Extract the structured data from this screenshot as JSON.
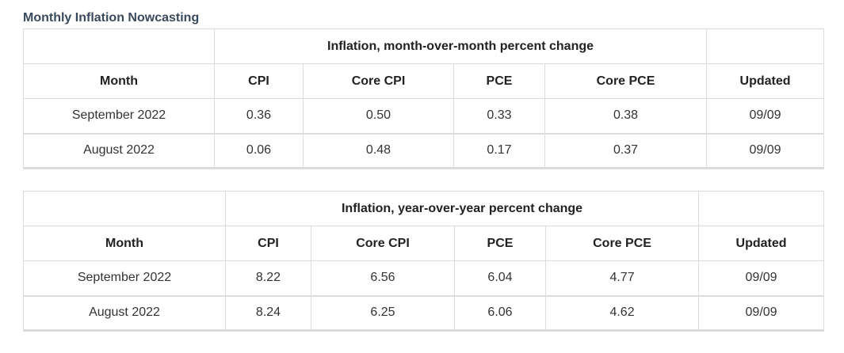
{
  "title": "Monthly Inflation Nowcasting",
  "tables": [
    {
      "caption": "Inflation, month-over-month percent change",
      "headers": [
        "Month",
        "CPI",
        "Core CPI",
        "PCE",
        "Core PCE",
        "Updated"
      ],
      "rows": [
        [
          "September 2022",
          "0.36",
          "0.50",
          "0.33",
          "0.38",
          "09/09"
        ],
        [
          "August 2022",
          "0.06",
          "0.48",
          "0.17",
          "0.37",
          "09/09"
        ]
      ]
    },
    {
      "caption": "Inflation, year-over-year percent change",
      "headers": [
        "Month",
        "CPI",
        "Core CPI",
        "PCE",
        "Core PCE",
        "Updated"
      ],
      "rows": [
        [
          "September 2022",
          "8.22",
          "6.56",
          "6.04",
          "4.77",
          "09/09"
        ],
        [
          "August 2022",
          "8.24",
          "6.25",
          "6.06",
          "4.62",
          "09/09"
        ]
      ]
    }
  ]
}
